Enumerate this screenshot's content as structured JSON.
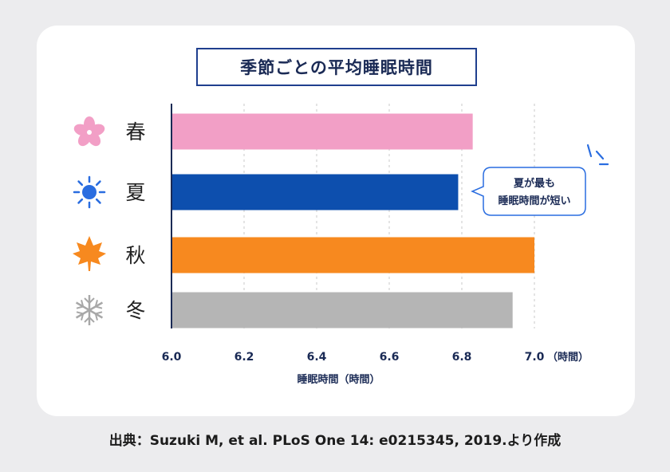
{
  "footer": {
    "source": "出典：Suzuki M, et al. PLoS One 14: e0215345, 2019.より作成"
  },
  "callout": {
    "line1": "夏が最も",
    "line2": "睡眠時間が短い"
  },
  "colors": {
    "spring": "#f29fc6",
    "summer": "#0d4fae",
    "autumn": "#f7891f",
    "winter": "#b5b5b5",
    "axis": "#1a2a55",
    "grid": "#c8c8c8"
  },
  "chart_data": {
    "type": "bar",
    "orientation": "horizontal",
    "title": "季節ごとの平均睡眠時間",
    "categories": [
      "春",
      "夏",
      "秋",
      "冬"
    ],
    "category_icons": [
      "sakura-icon",
      "sun-icon",
      "maple-leaf-icon",
      "snowflake-icon"
    ],
    "values": [
      6.83,
      6.79,
      7.0,
      6.94
    ],
    "xlabel": "睡眠時間（時間）",
    "x_unit": "（時間）",
    "xlim": [
      6.0,
      7.0
    ],
    "xticks": [
      "6.0",
      "6.2",
      "6.4",
      "6.6",
      "6.8",
      "7.0"
    ],
    "grid": "vertical-dashed"
  }
}
